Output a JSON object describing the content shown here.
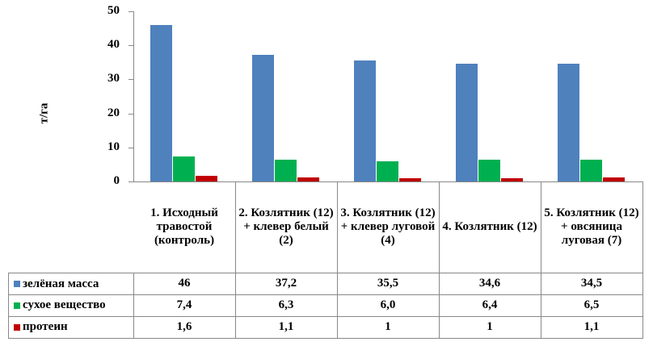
{
  "chart_data": {
    "type": "bar",
    "title": "",
    "ylabel": "т/га",
    "xlabel": "",
    "ylim": [
      0,
      50
    ],
    "yticks": [
      "0",
      "10",
      "20",
      "30",
      "40",
      "50"
    ],
    "grid": false,
    "legend": "table-left",
    "categories": [
      "1. Исходный травостой (контроль)",
      "2. Козлятник (12) + клевер белый (2)",
      "3. Козлятник (12) + клевер луговой (4)",
      "4. Козлятник (12)",
      "5. Козлятник (12) + овсяница луговая (7)"
    ],
    "series": [
      {
        "name": "зелёная масса",
        "color": "#4f81bd",
        "values": [
          46,
          37.2,
          35.5,
          34.6,
          34.5
        ],
        "labels": [
          "46",
          "37,2",
          "35,5",
          "34,6",
          "34,5"
        ]
      },
      {
        "name": "сухое вещество",
        "color": "#00b050",
        "values": [
          7.4,
          6.3,
          6.0,
          6.4,
          6.5
        ],
        "labels": [
          "7,4",
          "6,3",
          "6,0",
          "6,4",
          "6,5"
        ]
      },
      {
        "name": "протеин",
        "color": "#c00000",
        "values": [
          1.6,
          1.1,
          1,
          1,
          1.1
        ],
        "labels": [
          "1,6",
          "1,1",
          "1",
          "1",
          "1,1"
        ]
      }
    ]
  }
}
